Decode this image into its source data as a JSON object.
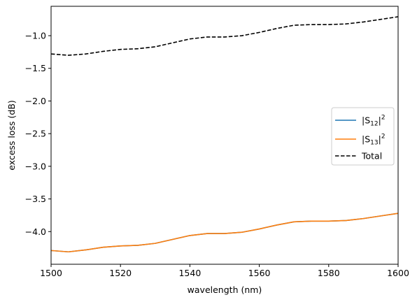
{
  "chart_data": {
    "type": "line",
    "xlabel": "wavelength (nm)",
    "ylabel": "excess loss (dB)",
    "xlim": [
      1500,
      1600
    ],
    "ylim": [
      -4.5,
      -0.55
    ],
    "xticks": [
      1500,
      1520,
      1540,
      1560,
      1580,
      1600
    ],
    "xtick_labels": [
      "1500",
      "1520",
      "1540",
      "1560",
      "1580",
      "1600"
    ],
    "yticks": [
      -4.0,
      -3.5,
      -3.0,
      -2.5,
      -2.0,
      -1.5,
      -1.0
    ],
    "ytick_labels": [
      "−4.0",
      "−3.5",
      "−3.0",
      "−2.5",
      "−2.0",
      "−1.5",
      "−1.0"
    ],
    "grid": false,
    "legend_position": "center-right",
    "x": [
      1500,
      1505,
      1510,
      1515,
      1520,
      1525,
      1530,
      1535,
      1540,
      1545,
      1550,
      1555,
      1560,
      1565,
      1570,
      1575,
      1580,
      1585,
      1590,
      1595,
      1600
    ],
    "series": [
      {
        "name": "|S12|^2",
        "legend_main": "|S",
        "legend_sub": "12",
        "legend_tail": "|",
        "legend_sup": "2",
        "color": "#1f77b4",
        "dash": "solid",
        "values": [
          -4.29,
          -4.31,
          -4.28,
          -4.24,
          -4.22,
          -4.21,
          -4.18,
          -4.12,
          -4.06,
          -4.03,
          -4.03,
          -4.01,
          -3.96,
          -3.9,
          -3.85,
          -3.84,
          -3.84,
          -3.83,
          -3.8,
          -3.76,
          -3.72
        ]
      },
      {
        "name": "|S13|^2",
        "legend_main": "|S",
        "legend_sub": "13",
        "legend_tail": "|",
        "legend_sup": "2",
        "color": "#ff7f0e",
        "dash": "solid",
        "values": [
          -4.29,
          -4.31,
          -4.28,
          -4.24,
          -4.22,
          -4.21,
          -4.18,
          -4.12,
          -4.06,
          -4.03,
          -4.03,
          -4.01,
          -3.96,
          -3.9,
          -3.85,
          -3.84,
          -3.84,
          -3.83,
          -3.8,
          -3.76,
          -3.72
        ]
      },
      {
        "name": "Total",
        "legend_main": "Total",
        "legend_sub": "",
        "legend_tail": "",
        "legend_sup": "",
        "color": "#000000",
        "dash": "dashed",
        "values": [
          -1.28,
          -1.3,
          -1.28,
          -1.24,
          -1.21,
          -1.2,
          -1.17,
          -1.11,
          -1.05,
          -1.02,
          -1.02,
          -1.0,
          -0.95,
          -0.89,
          -0.84,
          -0.83,
          -0.83,
          -0.82,
          -0.79,
          -0.75,
          -0.71
        ]
      }
    ]
  }
}
